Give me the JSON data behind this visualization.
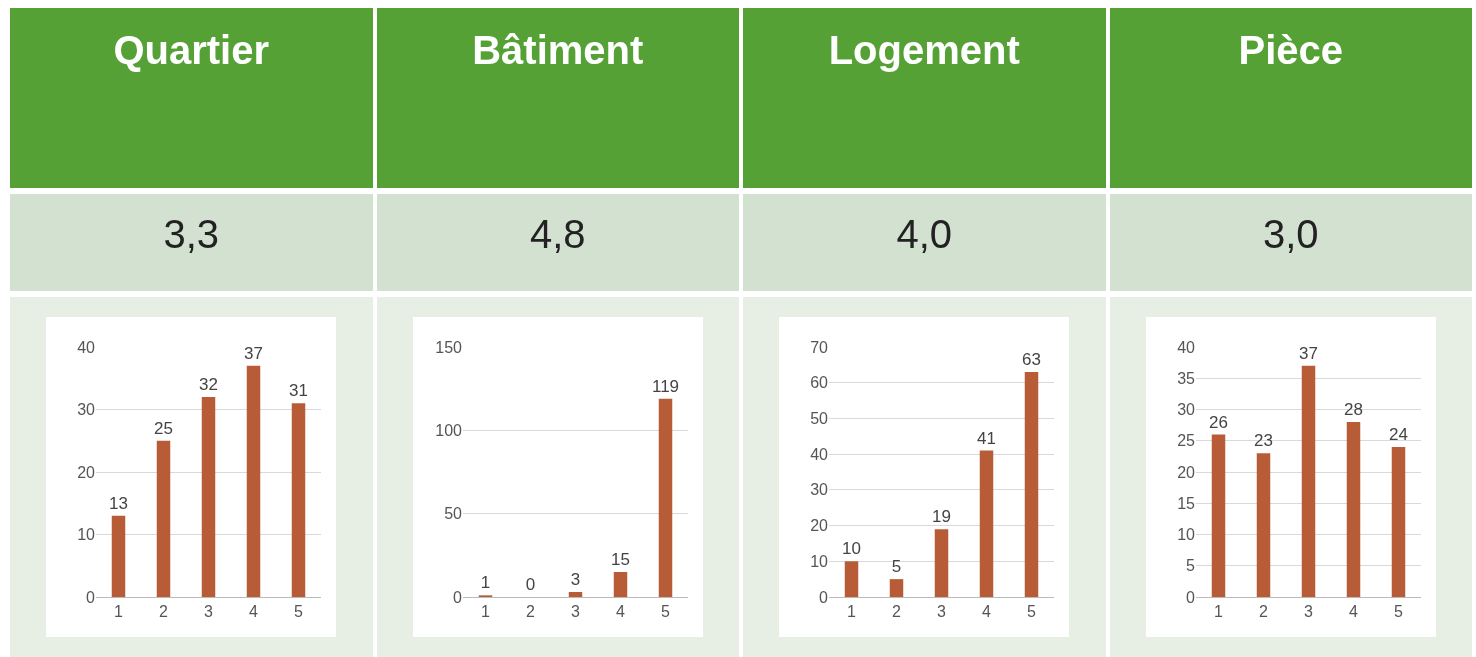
{
  "chart_data": [
    {
      "type": "bar",
      "title": "Quartier",
      "subtitle": "3,3",
      "categories": [
        "1",
        "2",
        "3",
        "4",
        "5"
      ],
      "values": [
        13,
        25,
        32,
        37,
        31
      ],
      "color": "#b85c38",
      "ylim": [
        0,
        40
      ],
      "yticks": [
        0,
        10,
        20,
        30,
        40
      ],
      "grid": "y",
      "data_labels": true
    },
    {
      "type": "bar",
      "title": "Bâtiment",
      "subtitle": "4,8",
      "categories": [
        "1",
        "2",
        "3",
        "4",
        "5"
      ],
      "values": [
        1,
        0,
        3,
        15,
        119
      ],
      "color": "#b85c38",
      "ylim": [
        0,
        150
      ],
      "yticks": [
        0,
        50,
        100,
        150
      ],
      "grid": "y",
      "data_labels": true
    },
    {
      "type": "bar",
      "title": "Logement",
      "subtitle": "4,0",
      "categories": [
        "1",
        "2",
        "3",
        "4",
        "5"
      ],
      "values": [
        10,
        5,
        19,
        41,
        63
      ],
      "color": "#b85c38",
      "ylim": [
        0,
        70
      ],
      "yticks": [
        0,
        10,
        20,
        30,
        40,
        50,
        60,
        70
      ],
      "grid": "y",
      "data_labels": true
    },
    {
      "type": "bar",
      "title": "Pièce",
      "subtitle": "3,0",
      "categories": [
        "1",
        "2",
        "3",
        "4",
        "5"
      ],
      "values": [
        26,
        23,
        37,
        28,
        24
      ],
      "color": "#b85c38",
      "ylim": [
        0,
        40
      ],
      "yticks": [
        0,
        5,
        10,
        15,
        20,
        25,
        30,
        35,
        40
      ],
      "grid": "y",
      "data_labels": true
    }
  ]
}
